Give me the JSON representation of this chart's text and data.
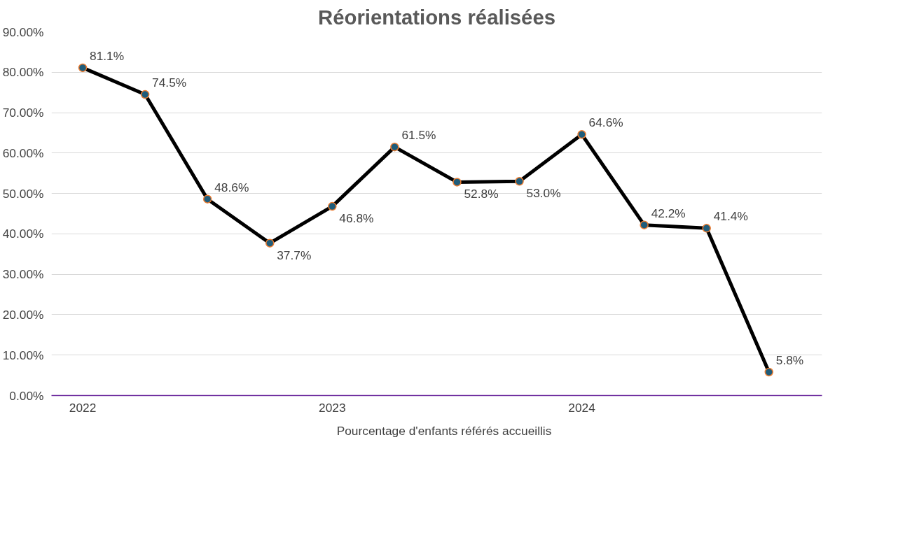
{
  "chart_data": {
    "type": "line",
    "title": "Réorientations réalisées",
    "categories": [
      "2022",
      null,
      null,
      null,
      "2023",
      null,
      null,
      null,
      "2024",
      null,
      null,
      null
    ],
    "series": [
      {
        "name": "Pourcentage d'enfants référés accueillis",
        "color": "#000000",
        "values": [
          81.1,
          74.5,
          48.6,
          37.7,
          46.8,
          61.5,
          52.8,
          53.0,
          64.6,
          42.2,
          41.4,
          5.8
        ],
        "value_labels": [
          "81.1%",
          "74.5%",
          "48.6%",
          "37.7%",
          "46.8%",
          "61.5%",
          "52.8%",
          "53.0%",
          "64.6%",
          "42.2%",
          "41.4%",
          "5.8%"
        ]
      }
    ],
    "ylim": [
      0,
      90
    ],
    "yticks": [
      {
        "value": 0,
        "label": "0.00%"
      },
      {
        "value": 10,
        "label": "10.00%"
      },
      {
        "value": 20,
        "label": "20.00%"
      },
      {
        "value": 30,
        "label": "30.00%"
      },
      {
        "value": 40,
        "label": "40.00%"
      },
      {
        "value": 50,
        "label": "50.00%"
      },
      {
        "value": 60,
        "label": "60.00%"
      },
      {
        "value": 70,
        "label": "70.00%"
      },
      {
        "value": 80,
        "label": "80.00%"
      },
      {
        "value": 90,
        "label": "90.00%"
      }
    ],
    "grid": "y",
    "legend": "bottom",
    "marker": "circle",
    "line_style": "solid"
  }
}
